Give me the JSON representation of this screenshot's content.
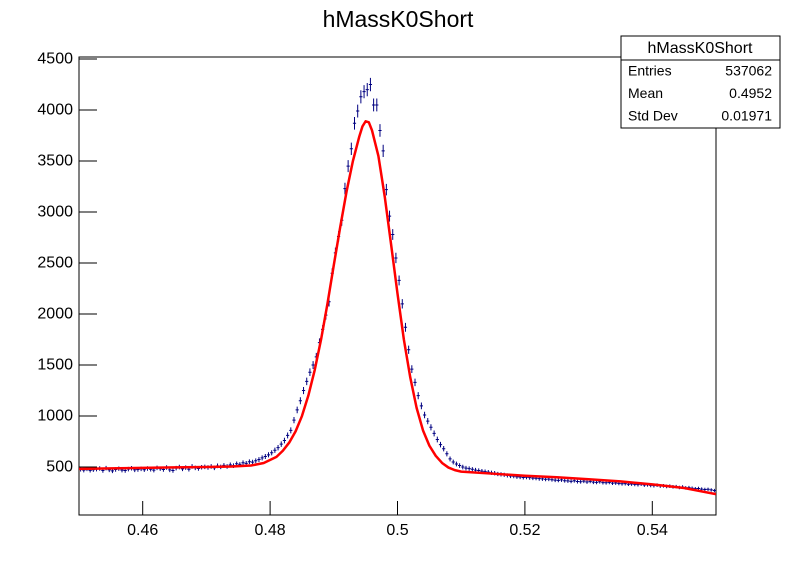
{
  "chart_data": {
    "type": "histogram",
    "title": "hMassK0Short",
    "xlim": [
      0.45,
      0.55
    ],
    "xticks": [
      0.46,
      0.48,
      0.5,
      0.52,
      0.54
    ],
    "ylim": [
      30,
      4520
    ],
    "yticks": [
      500,
      1000,
      1500,
      2000,
      2500,
      3000,
      3500,
      4000,
      4500
    ],
    "color": "#000080",
    "bins": [
      0.45,
      0.4505,
      0.451,
      0.4515,
      0.452,
      0.4525,
      0.453,
      0.4535,
      0.454,
      0.4545,
      0.455,
      0.4555,
      0.456,
      0.4565,
      0.457,
      0.4575,
      0.458,
      0.4585,
      0.459,
      0.4595,
      0.46,
      0.4605,
      0.461,
      0.4615,
      0.462,
      0.4625,
      0.463,
      0.4635,
      0.464,
      0.4645,
      0.465,
      0.4655,
      0.466,
      0.4665,
      0.467,
      0.4675,
      0.468,
      0.4685,
      0.469,
      0.4695,
      0.47,
      0.4705,
      0.471,
      0.4715,
      0.472,
      0.4725,
      0.473,
      0.4735,
      0.474,
      0.4745,
      0.475,
      0.4755,
      0.476,
      0.4765,
      0.477,
      0.4775,
      0.478,
      0.4785,
      0.479,
      0.4795,
      0.48,
      0.4805,
      0.481,
      0.4815,
      0.482,
      0.4825,
      0.483,
      0.4835,
      0.484,
      0.4845,
      0.485,
      0.4855,
      0.486,
      0.4865,
      0.487,
      0.4875,
      0.488,
      0.4885,
      0.489,
      0.4895,
      0.49,
      0.4905,
      0.491,
      0.4915,
      0.492,
      0.4925,
      0.493,
      0.4935,
      0.494,
      0.4945,
      0.495,
      0.4955,
      0.496,
      0.4965,
      0.497,
      0.4975,
      0.498,
      0.4985,
      0.499,
      0.4995,
      0.5,
      0.5005,
      0.501,
      0.5015,
      0.502,
      0.5025,
      0.503,
      0.5035,
      0.504,
      0.5045,
      0.505,
      0.5055,
      0.506,
      0.5065,
      0.507,
      0.5075,
      0.508,
      0.5085,
      0.509,
      0.5095,
      0.51,
      0.5105,
      0.511,
      0.5115,
      0.512,
      0.5125,
      0.513,
      0.5135,
      0.514,
      0.5145,
      0.515,
      0.5155,
      0.516,
      0.5165,
      0.517,
      0.5175,
      0.518,
      0.5185,
      0.519,
      0.5195,
      0.52,
      0.5205,
      0.521,
      0.5215,
      0.522,
      0.5225,
      0.523,
      0.5235,
      0.524,
      0.5245,
      0.525,
      0.5255,
      0.526,
      0.5265,
      0.527,
      0.5275,
      0.528,
      0.5285,
      0.529,
      0.5295,
      0.53,
      0.5305,
      0.531,
      0.5315,
      0.532,
      0.5325,
      0.533,
      0.5335,
      0.534,
      0.5345,
      0.535,
      0.5355,
      0.536,
      0.5365,
      0.537,
      0.5375,
      0.538,
      0.5385,
      0.539,
      0.5395,
      0.54,
      0.5405,
      0.541,
      0.5415,
      0.542,
      0.5425,
      0.543,
      0.5435,
      0.544,
      0.5445,
      0.545,
      0.5455,
      0.546,
      0.5465,
      0.547,
      0.5475,
      0.548,
      0.5485,
      0.549,
      0.5495,
      0.55
    ],
    "values": [
      478,
      470,
      482,
      468,
      474,
      480,
      486,
      466,
      490,
      472,
      462,
      476,
      484,
      470,
      466,
      480,
      488,
      472,
      476,
      482,
      474,
      486,
      478,
      470,
      492,
      484,
      476,
      496,
      472,
      466,
      490,
      500,
      482,
      494,
      478,
      506,
      492,
      486,
      498,
      502,
      496,
      506,
      492,
      512,
      502,
      516,
      506,
      522,
      514,
      532,
      526,
      542,
      536,
      552,
      548,
      562,
      574,
      590,
      604,
      620,
      640,
      665,
      690,
      725,
      760,
      810,
      860,
      960,
      1060,
      1150,
      1250,
      1340,
      1430,
      1500,
      1580,
      1720,
      1850,
      1990,
      2120,
      2400,
      2600,
      2760,
      2920,
      3230,
      3450,
      3620,
      3870,
      3990,
      4130,
      4180,
      4200,
      4250,
      4050,
      4050,
      3800,
      3600,
      3220,
      2960,
      2780,
      2550,
      2330,
      2100,
      1870,
      1650,
      1460,
      1330,
      1200,
      1100,
      1010,
      950,
      890,
      830,
      770,
      720,
      680,
      630,
      580,
      550,
      530,
      515,
      500,
      490,
      485,
      478,
      470,
      466,
      460,
      455,
      450,
      444,
      440,
      432,
      428,
      424,
      418,
      412,
      410,
      404,
      402,
      398,
      400,
      396,
      392,
      390,
      386,
      384,
      380,
      382,
      376,
      372,
      370,
      374,
      366,
      364,
      360,
      366,
      358,
      356,
      362,
      354,
      360,
      352,
      350,
      356,
      348,
      346,
      350,
      342,
      344,
      340,
      336,
      338,
      332,
      334,
      330,
      328,
      332,
      324,
      326,
      320,
      318,
      322,
      314,
      316,
      310,
      312,
      306,
      308,
      300,
      304,
      296,
      298,
      292,
      288,
      290,
      284,
      280,
      282,
      276,
      270
    ],
    "fit": {
      "type": "line",
      "color": "#ff0000",
      "x": [
        0.45,
        0.455,
        0.46,
        0.465,
        0.47,
        0.474,
        0.477,
        0.479,
        0.481,
        0.482,
        0.483,
        0.484,
        0.485,
        0.486,
        0.487,
        0.488,
        0.489,
        0.49,
        0.491,
        0.492,
        0.493,
        0.494,
        0.4945,
        0.495,
        0.4955,
        0.496,
        0.497,
        0.498,
        0.499,
        0.5,
        0.501,
        0.502,
        0.503,
        0.504,
        0.505,
        0.506,
        0.507,
        0.508,
        0.509,
        0.51,
        0.515,
        0.52,
        0.525,
        0.53,
        0.535,
        0.54,
        0.545,
        0.55
      ],
      "values": [
        482,
        487,
        492,
        497,
        500,
        505,
        515,
        540,
        600,
        660,
        740,
        850,
        1000,
        1200,
        1450,
        1750,
        2100,
        2480,
        2850,
        3200,
        3500,
        3740,
        3840,
        3890,
        3880,
        3800,
        3550,
        3150,
        2680,
        2200,
        1750,
        1380,
        1080,
        860,
        710,
        610,
        540,
        495,
        470,
        455,
        435,
        415,
        400,
        380,
        360,
        330,
        295,
        235
      ]
    },
    "stats": {
      "title": "hMassK0Short",
      "rows": [
        [
          "Entries",
          "537062"
        ],
        [
          "Mean",
          "0.4952"
        ],
        [
          "Std Dev",
          "0.01971"
        ]
      ]
    }
  }
}
